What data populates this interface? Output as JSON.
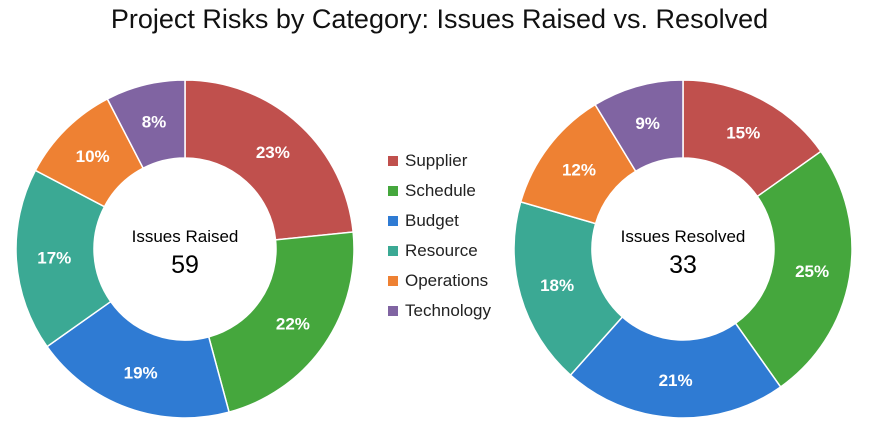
{
  "chart_data": {
    "type": "pie",
    "title": "Project Risks by Category: Issues Raised vs. Resolved",
    "categories": [
      "Supplier",
      "Schedule",
      "Budget",
      "Resource",
      "Operations",
      "Technology"
    ],
    "colors": [
      "#c0504d",
      "#45a73d",
      "#2f7bd3",
      "#3ba994",
      "#ee8133",
      "#8064a2"
    ],
    "series": [
      {
        "name": "Issues Raised",
        "total": "59",
        "percent_labels": [
          "23%",
          "22%",
          "19%",
          "17%",
          "10%",
          "8%"
        ],
        "values": [
          23.4,
          22.4,
          19.4,
          17.5,
          9.7,
          7.6
        ]
      },
      {
        "name": "Issues Resolved",
        "total": "33",
        "percent_labels": [
          "15%",
          "25%",
          "21%",
          "18%",
          "12%",
          "9%"
        ],
        "values": [
          15.2,
          25.0,
          21.4,
          17.9,
          11.8,
          8.7
        ]
      }
    ],
    "legend_position": "center"
  }
}
